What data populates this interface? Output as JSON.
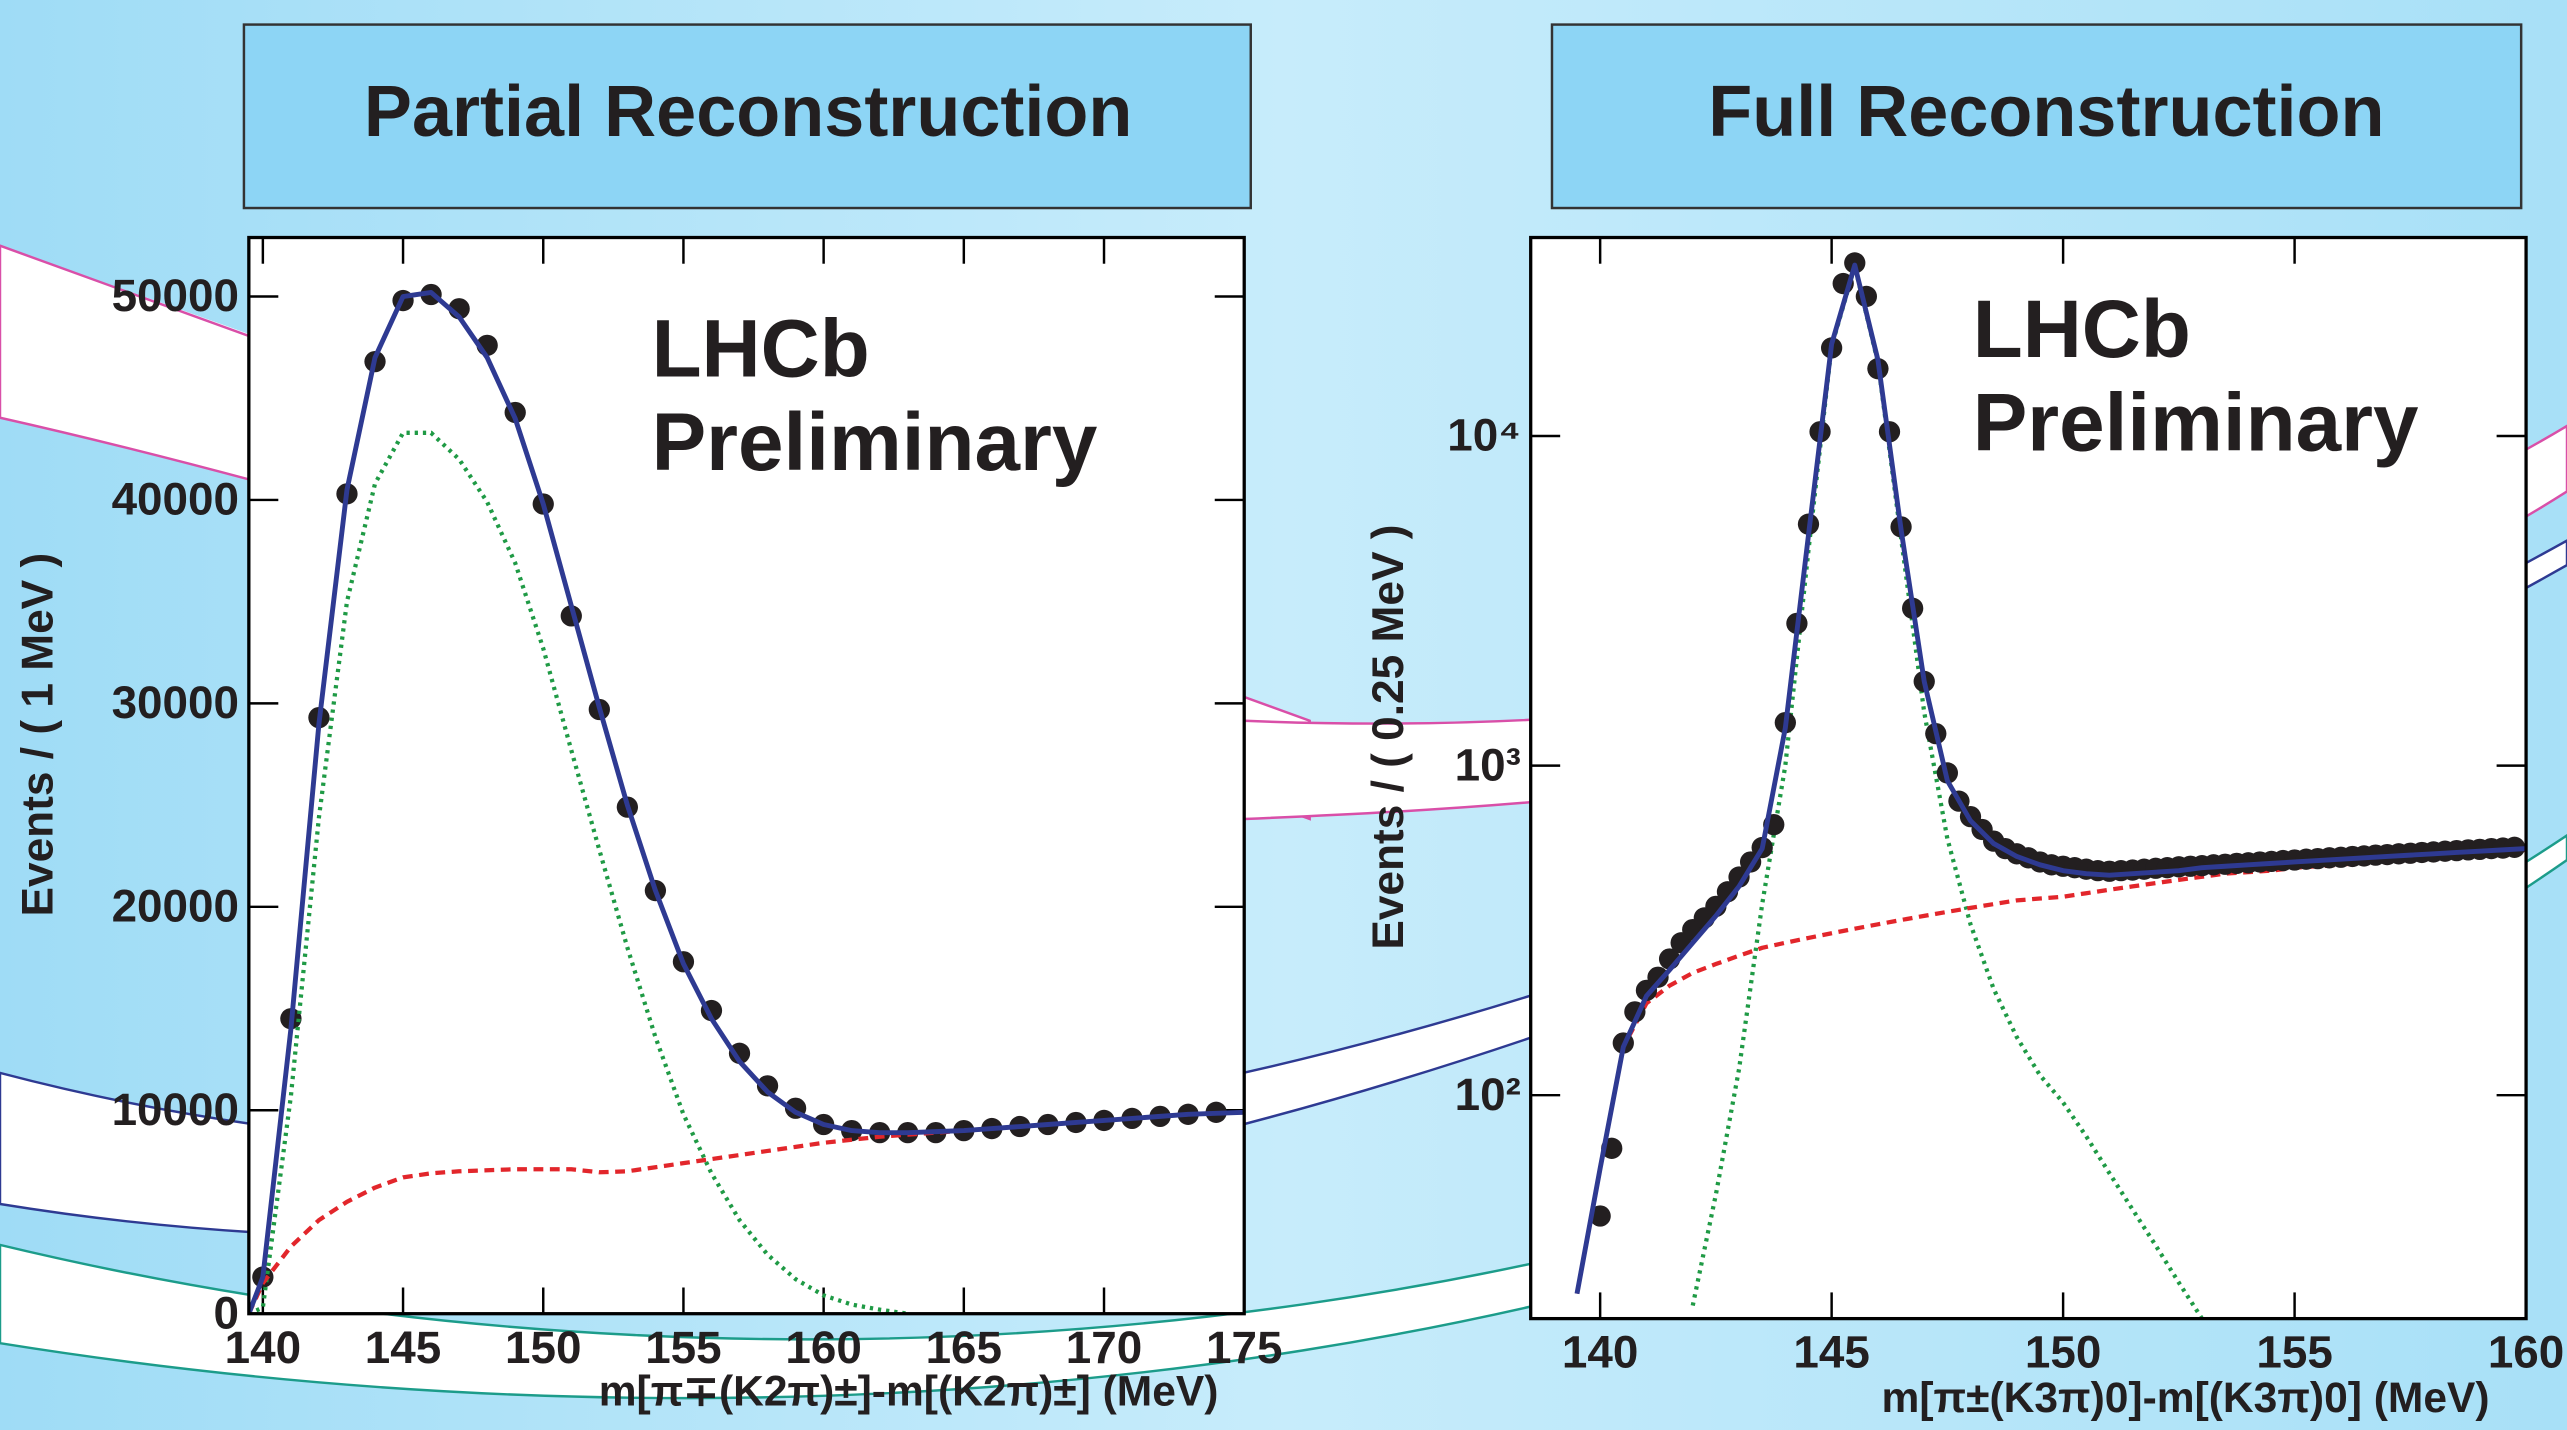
{
  "chart_data": [
    {
      "type": "line",
      "title": "Partial Reconstruction",
      "annotations": [
        "LHCb",
        "Preliminary"
      ],
      "x_label": "m[π∓(K2π)±]-m[(K2π)±]  (MeV)",
      "y_label": "Events  /  ( 1 MeV )",
      "xlim": [
        139.5,
        175
      ],
      "xticks": [
        140,
        145,
        150,
        155,
        160,
        165,
        170,
        175
      ],
      "ylim": [
        0,
        52900
      ],
      "yticks": [
        0,
        10000,
        20000,
        30000,
        40000,
        50000
      ],
      "log_y": false,
      "series": [
        {
          "style": "points",
          "color": "#231f20",
          "x": [
            140,
            141,
            142,
            143,
            144,
            145,
            146,
            147,
            148,
            149,
            150,
            151,
            152,
            153,
            154,
            155,
            156,
            157,
            158,
            159,
            160,
            161,
            162,
            163,
            164,
            165,
            166,
            167,
            168,
            169,
            170,
            171,
            172,
            173,
            174
          ],
          "values": [
            1800,
            14500,
            29300,
            40300,
            46800,
            49800,
            50100,
            49400,
            47600,
            44300,
            39800,
            34300,
            29700,
            24900,
            20800,
            17300,
            14900,
            12800,
            11200,
            10100,
            9300,
            9000,
            8900,
            8900,
            8900,
            9000,
            9100,
            9200,
            9300,
            9400,
            9500,
            9600,
            9700,
            9800,
            9900
          ]
        },
        {
          "style": "dotted",
          "color": "#1f9a45",
          "x": [
            139.5,
            140,
            141,
            142,
            143,
            144,
            145,
            146,
            147,
            148,
            149,
            150,
            151,
            152,
            153,
            154,
            155,
            156,
            157,
            158,
            159,
            160,
            161,
            162,
            163,
            164,
            165,
            166,
            167,
            168,
            169,
            170,
            171,
            172,
            173,
            174,
            175
          ],
          "values": [
            0,
            300,
            10700,
            24400,
            35000,
            40800,
            43300,
            43300,
            42000,
            39900,
            36900,
            32700,
            27700,
            22800,
            18000,
            13600,
            9800,
            6900,
            4600,
            2900,
            1700,
            900,
            450,
            200,
            0,
            null,
            null,
            null,
            null,
            null,
            null,
            null,
            null,
            null,
            null,
            null,
            null
          ]
        },
        {
          "style": "dashed",
          "color": "#e2262b",
          "x": [
            139.5,
            140,
            141,
            142,
            143,
            144,
            145,
            146,
            147,
            148,
            149,
            150,
            151,
            152,
            153,
            154,
            155,
            156,
            157,
            158,
            159,
            160,
            161,
            162,
            163,
            164,
            165,
            166,
            167,
            168,
            169,
            170,
            171,
            172,
            173,
            174,
            175
          ],
          "values": [
            0,
            1500,
            3300,
            4600,
            5500,
            6200,
            6700,
            6900,
            7000,
            7050,
            7100,
            7100,
            7100,
            6950,
            7000,
            7200,
            7400,
            7600,
            7800,
            8000,
            8200,
            8400,
            8550,
            8700,
            8800,
            8900,
            9000,
            9100,
            9200,
            9300,
            9400,
            9500,
            9600,
            9700,
            9800,
            9850,
            9900
          ]
        },
        {
          "style": "solid",
          "color": "#2e3a92",
          "x": [
            139.5,
            140,
            141,
            142,
            143,
            144,
            145,
            146,
            147,
            148,
            149,
            150,
            151,
            152,
            153,
            154,
            155,
            156,
            157,
            158,
            159,
            160,
            161,
            162,
            163,
            164,
            165,
            166,
            167,
            168,
            169,
            170,
            171,
            172,
            173,
            174,
            175
          ],
          "values": [
            0,
            1800,
            14000,
            29000,
            40500,
            47000,
            50000,
            50200,
            49000,
            47000,
            44000,
            39800,
            34800,
            29800,
            25000,
            20800,
            17200,
            14500,
            12400,
            10900,
            9900,
            9300,
            9000,
            8900,
            8900,
            8950,
            9000,
            9100,
            9200,
            9300,
            9400,
            9500,
            9600,
            9700,
            9800,
            9850,
            9900
          ]
        }
      ]
    },
    {
      "type": "line",
      "title": "Full Reconstruction",
      "annotations": [
        "LHCb",
        "Preliminary"
      ],
      "x_label": "m[π±(K3π)0]-m[(K3π)0]  (MeV)",
      "y_label": "Events  /  ( 0.25  MeV )",
      "xlim": [
        138.5,
        160
      ],
      "xticks": [
        140,
        145,
        150,
        155,
        160
      ],
      "ylim": [
        21,
        40000
      ],
      "yticks": [
        {
          "value": 100,
          "label": "10²"
        },
        {
          "value": 1000,
          "label": "10³"
        },
        {
          "value": 10000,
          "label": "10⁴"
        }
      ],
      "log_y": true,
      "series": [
        {
          "style": "dotted",
          "color": "#1f9a45",
          "x": [
            139.5,
            140,
            140.5,
            141,
            141.5,
            142,
            142.5,
            143,
            143.5,
            144,
            144.5,
            145,
            145.5,
            146,
            146.5,
            147,
            147.5,
            148,
            148.5,
            149,
            149.5,
            150,
            150.5,
            151,
            151.5,
            152,
            152.5,
            153,
            153.5,
            154,
            154.5,
            155,
            155.5,
            156,
            156.5,
            157,
            157.5,
            158,
            158.5,
            159,
            159.5,
            160
          ],
          "values": [
            null,
            null,
            null,
            null,
            null,
            23,
            50,
            120,
            380,
            1000,
            4500,
            18700,
            32700,
            16700,
            4900,
            1450,
            600,
            330,
            210,
            150,
            115,
            95,
            75,
            58,
            45,
            35,
            27,
            21,
            null,
            null,
            null,
            null,
            null,
            null,
            null,
            null,
            null,
            null,
            null,
            null,
            null,
            null
          ]
        },
        {
          "style": "dashed",
          "color": "#e2262b",
          "x": [
            139.5,
            140,
            140.5,
            141,
            141.5,
            142,
            142.5,
            143,
            143.5,
            144,
            144.5,
            145,
            145.5,
            146,
            146.5,
            147,
            147.5,
            148,
            148.5,
            149,
            149.5,
            150,
            150.5,
            151,
            151.5,
            152,
            152.5,
            153,
            153.5,
            154,
            154.5,
            155,
            155.5,
            156,
            156.5,
            157,
            157.5,
            158,
            158.5,
            159,
            159.5,
            160
          ],
          "values": [
            25,
            60,
            140,
            190,
            215,
            235,
            250,
            265,
            280,
            290,
            300,
            310,
            320,
            330,
            340,
            350,
            360,
            370,
            380,
            390,
            395,
            400,
            410,
            420,
            430,
            440,
            450,
            460,
            470,
            475,
            480,
            490,
            495,
            500,
            510,
            515,
            520,
            530,
            535,
            540,
            550,
            555
          ]
        },
        {
          "style": "points",
          "color": "#231f20",
          "x": [
            140,
            140.25,
            140.5,
            140.75,
            141,
            141.25,
            141.5,
            141.75,
            142,
            142.25,
            142.5,
            142.75,
            143,
            143.25,
            143.5,
            143.75,
            144,
            144.25,
            144.5,
            144.75,
            145,
            145.25,
            145.5,
            145.75,
            146,
            146.25,
            146.5,
            146.75,
            147,
            147.25,
            147.5,
            147.75,
            148,
            148.25,
            148.5,
            148.75,
            149,
            149.25,
            149.5,
            149.75,
            150,
            150.25,
            150.5,
            150.75,
            151,
            151.25,
            151.5,
            151.75,
            152,
            152.25,
            152.5,
            152.75,
            153,
            153.25,
            153.5,
            153.75,
            154,
            154.25,
            154.5,
            154.75,
            155,
            155.25,
            155.5,
            155.75,
            156,
            156.25,
            156.5,
            156.75,
            157,
            157.25,
            157.5,
            157.75,
            158,
            158.25,
            158.5,
            158.75,
            159,
            159.25,
            159.5,
            159.75
          ],
          "values": [
            43,
            69,
            144,
            179,
            208,
            228,
            259,
            290,
            318,
            345,
            374,
            414,
            459,
            510,
            564,
            662,
            1350,
            2700,
            5400,
            10300,
            18500,
            29000,
            33500,
            26500,
            16000,
            10300,
            5300,
            3000,
            1800,
            1250,
            950,
            780,
            700,
            640,
            590,
            560,
            540,
            525,
            510,
            500,
            495,
            490,
            485,
            480,
            478,
            480,
            482,
            485,
            488,
            490,
            493,
            495,
            497,
            500,
            502,
            505,
            507,
            510,
            512,
            515,
            517,
            520,
            522,
            525,
            527,
            530,
            532,
            535,
            537,
            540,
            542,
            545,
            547,
            550,
            552,
            555,
            557,
            560,
            562,
            565
          ]
        },
        {
          "style": "solid",
          "color": "#2e3a92",
          "x": [
            139.5,
            140,
            140.5,
            141,
            141.5,
            142,
            142.5,
            143,
            143.5,
            144,
            144.5,
            145,
            145.5,
            146,
            146.5,
            147,
            147.5,
            148,
            148.5,
            149,
            149.5,
            150,
            150.5,
            151,
            151.5,
            152,
            152.5,
            153,
            153.5,
            154,
            154.5,
            155,
            155.5,
            156,
            156.5,
            157,
            157.5,
            158,
            158.5,
            159,
            159.5,
            160
          ],
          "values": [
            25,
            60,
            140,
            200,
            240,
            290,
            350,
            430,
            560,
            1300,
            5000,
            19000,
            33000,
            17000,
            5200,
            1800,
            900,
            680,
            580,
            530,
            500,
            480,
            470,
            465,
            470,
            475,
            480,
            490,
            495,
            500,
            505,
            510,
            515,
            520,
            525,
            530,
            535,
            540,
            545,
            550,
            555,
            560
          ]
        }
      ]
    }
  ]
}
